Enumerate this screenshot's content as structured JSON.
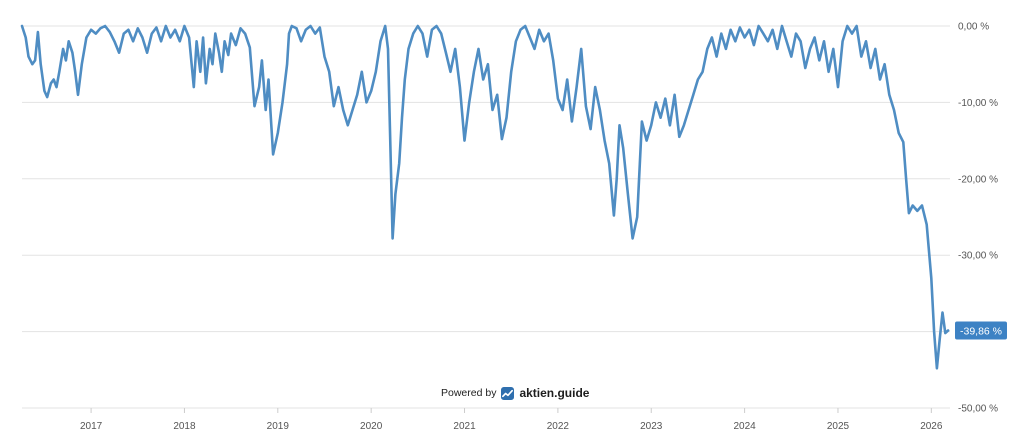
{
  "colors": {
    "series": "#4f8dc3",
    "badge": "#3d82c4",
    "grid": "#e3e3e3"
  },
  "credit": {
    "prefix": "Powered by",
    "brand": "aktien.guide",
    "icon": "aktien-guide-logo-icon"
  },
  "chart_data": {
    "type": "line",
    "title": "",
    "xlabel": "",
    "ylabel": "",
    "x_ticks": [
      "2017",
      "2018",
      "2019",
      "2020",
      "2021",
      "2022",
      "2023",
      "2024",
      "2025",
      "2026"
    ],
    "y_ticks": [
      "0,00 %",
      "-10,00 %",
      "-20,00 %",
      "-30,00 %",
      "-40,00 %",
      "-50,00 %"
    ],
    "y_tick_values": [
      0,
      -10,
      -20,
      -30,
      -40,
      -50
    ],
    "ylim": [
      -50,
      0
    ],
    "xlim": [
      2016.26,
      2026.2
    ],
    "grid": true,
    "last_value_label": "-39,86 %",
    "series": [
      {
        "values": [
          [
            2016.26,
            0
          ],
          [
            2016.3,
            -1.5
          ],
          [
            2016.33,
            -4
          ],
          [
            2016.37,
            -5
          ],
          [
            2016.4,
            -4.5
          ],
          [
            2016.43,
            -0.8
          ],
          [
            2016.46,
            -5
          ],
          [
            2016.5,
            -8.5
          ],
          [
            2016.53,
            -9.3
          ],
          [
            2016.57,
            -7.5
          ],
          [
            2016.6,
            -7
          ],
          [
            2016.63,
            -8
          ],
          [
            2016.66,
            -6
          ],
          [
            2016.7,
            -3
          ],
          [
            2016.73,
            -4.5
          ],
          [
            2016.76,
            -2
          ],
          [
            2016.8,
            -3.5
          ],
          [
            2016.83,
            -6
          ],
          [
            2016.86,
            -9
          ],
          [
            2016.9,
            -5
          ],
          [
            2016.95,
            -1.5
          ],
          [
            2017.0,
            -0.5
          ],
          [
            2017.05,
            -1
          ],
          [
            2017.1,
            -0.3
          ],
          [
            2017.15,
            0
          ],
          [
            2017.2,
            -0.8
          ],
          [
            2017.25,
            -2
          ],
          [
            2017.3,
            -3.5
          ],
          [
            2017.35,
            -1
          ],
          [
            2017.4,
            -0.5
          ],
          [
            2017.45,
            -2
          ],
          [
            2017.5,
            -0.3
          ],
          [
            2017.55,
            -1.5
          ],
          [
            2017.6,
            -3.5
          ],
          [
            2017.65,
            -1
          ],
          [
            2017.7,
            -0.2
          ],
          [
            2017.75,
            -2
          ],
          [
            2017.8,
            0
          ],
          [
            2017.85,
            -1.5
          ],
          [
            2017.9,
            -0.5
          ],
          [
            2017.95,
            -2
          ],
          [
            2018.0,
            0
          ],
          [
            2018.05,
            -1.5
          ],
          [
            2018.1,
            -8
          ],
          [
            2018.13,
            -2
          ],
          [
            2018.17,
            -6
          ],
          [
            2018.2,
            -1.5
          ],
          [
            2018.23,
            -7.5
          ],
          [
            2018.27,
            -3
          ],
          [
            2018.3,
            -5
          ],
          [
            2018.33,
            -1
          ],
          [
            2018.37,
            -3.5
          ],
          [
            2018.4,
            -6
          ],
          [
            2018.43,
            -2
          ],
          [
            2018.47,
            -3.8
          ],
          [
            2018.5,
            -1
          ],
          [
            2018.55,
            -2.5
          ],
          [
            2018.6,
            -0.3
          ],
          [
            2018.65,
            -1
          ],
          [
            2018.7,
            -2.8
          ],
          [
            2018.75,
            -10.5
          ],
          [
            2018.8,
            -8
          ],
          [
            2018.83,
            -4.5
          ],
          [
            2018.87,
            -11
          ],
          [
            2018.9,
            -7
          ],
          [
            2018.95,
            -16.8
          ],
          [
            2019.0,
            -14
          ],
          [
            2019.05,
            -10
          ],
          [
            2019.1,
            -5
          ],
          [
            2019.12,
            -1
          ],
          [
            2019.15,
            0
          ],
          [
            2019.2,
            -0.3
          ],
          [
            2019.25,
            -2
          ],
          [
            2019.3,
            -0.5
          ],
          [
            2019.35,
            0
          ],
          [
            2019.4,
            -1
          ],
          [
            2019.45,
            -0.2
          ],
          [
            2019.5,
            -4
          ],
          [
            2019.55,
            -6
          ],
          [
            2019.6,
            -10.5
          ],
          [
            2019.65,
            -8
          ],
          [
            2019.7,
            -11
          ],
          [
            2019.75,
            -13
          ],
          [
            2019.8,
            -11
          ],
          [
            2019.85,
            -9
          ],
          [
            2019.9,
            -6
          ],
          [
            2019.95,
            -10
          ],
          [
            2020.0,
            -8.5
          ],
          [
            2020.05,
            -6
          ],
          [
            2020.1,
            -2
          ],
          [
            2020.15,
            0
          ],
          [
            2020.18,
            -3
          ],
          [
            2020.21,
            -18
          ],
          [
            2020.23,
            -27.8
          ],
          [
            2020.26,
            -22
          ],
          [
            2020.3,
            -18
          ],
          [
            2020.33,
            -12
          ],
          [
            2020.36,
            -7
          ],
          [
            2020.4,
            -3
          ],
          [
            2020.45,
            -1
          ],
          [
            2020.5,
            0
          ],
          [
            2020.55,
            -1
          ],
          [
            2020.6,
            -4
          ],
          [
            2020.65,
            -0.5
          ],
          [
            2020.7,
            0
          ],
          [
            2020.75,
            -1
          ],
          [
            2020.8,
            -3.5
          ],
          [
            2020.85,
            -6
          ],
          [
            2020.9,
            -3
          ],
          [
            2020.95,
            -8
          ],
          [
            2021.0,
            -15
          ],
          [
            2021.05,
            -10
          ],
          [
            2021.1,
            -6
          ],
          [
            2021.15,
            -3
          ],
          [
            2021.2,
            -7
          ],
          [
            2021.25,
            -5
          ],
          [
            2021.3,
            -11
          ],
          [
            2021.35,
            -9
          ],
          [
            2021.4,
            -14.8
          ],
          [
            2021.45,
            -12
          ],
          [
            2021.5,
            -6
          ],
          [
            2021.55,
            -2
          ],
          [
            2021.6,
            -0.5
          ],
          [
            2021.65,
            0
          ],
          [
            2021.7,
            -1.5
          ],
          [
            2021.75,
            -3
          ],
          [
            2021.8,
            -0.5
          ],
          [
            2021.85,
            -2
          ],
          [
            2021.9,
            -1
          ],
          [
            2021.95,
            -4.5
          ],
          [
            2022.0,
            -9.5
          ],
          [
            2022.05,
            -11
          ],
          [
            2022.1,
            -7
          ],
          [
            2022.15,
            -12.5
          ],
          [
            2022.2,
            -8
          ],
          [
            2022.25,
            -3
          ],
          [
            2022.3,
            -10.5
          ],
          [
            2022.35,
            -13.5
          ],
          [
            2022.4,
            -8
          ],
          [
            2022.45,
            -11
          ],
          [
            2022.5,
            -15
          ],
          [
            2022.55,
            -18
          ],
          [
            2022.6,
            -24.8
          ],
          [
            2022.63,
            -20
          ],
          [
            2022.66,
            -13
          ],
          [
            2022.7,
            -16
          ],
          [
            2022.75,
            -22
          ],
          [
            2022.8,
            -27.8
          ],
          [
            2022.85,
            -25
          ],
          [
            2022.9,
            -12.5
          ],
          [
            2022.95,
            -15
          ],
          [
            2023.0,
            -13
          ],
          [
            2023.05,
            -10
          ],
          [
            2023.1,
            -12
          ],
          [
            2023.15,
            -9.5
          ],
          [
            2023.2,
            -13
          ],
          [
            2023.25,
            -9
          ],
          [
            2023.3,
            -14.5
          ],
          [
            2023.35,
            -13
          ],
          [
            2023.4,
            -11
          ],
          [
            2023.45,
            -9
          ],
          [
            2023.5,
            -7
          ],
          [
            2023.55,
            -6
          ],
          [
            2023.6,
            -3
          ],
          [
            2023.65,
            -1.5
          ],
          [
            2023.7,
            -4
          ],
          [
            2023.75,
            -1
          ],
          [
            2023.8,
            -3
          ],
          [
            2023.85,
            -0.5
          ],
          [
            2023.9,
            -2
          ],
          [
            2023.95,
            -0.2
          ],
          [
            2024.0,
            -1.5
          ],
          [
            2024.05,
            -0.5
          ],
          [
            2024.1,
            -2.5
          ],
          [
            2024.15,
            0
          ],
          [
            2024.2,
            -1
          ],
          [
            2024.25,
            -2
          ],
          [
            2024.3,
            -0.5
          ],
          [
            2024.35,
            -3
          ],
          [
            2024.4,
            0
          ],
          [
            2024.45,
            -2
          ],
          [
            2024.5,
            -4
          ],
          [
            2024.55,
            -1
          ],
          [
            2024.6,
            -2
          ],
          [
            2024.65,
            -5.5
          ],
          [
            2024.7,
            -3
          ],
          [
            2024.75,
            -1.5
          ],
          [
            2024.8,
            -4.5
          ],
          [
            2024.85,
            -2
          ],
          [
            2024.9,
            -6
          ],
          [
            2024.95,
            -3
          ],
          [
            2025.0,
            -8
          ],
          [
            2025.05,
            -2
          ],
          [
            2025.1,
            0
          ],
          [
            2025.15,
            -1
          ],
          [
            2025.2,
            0
          ],
          [
            2025.25,
            -4
          ],
          [
            2025.3,
            -2
          ],
          [
            2025.35,
            -5.5
          ],
          [
            2025.4,
            -3
          ],
          [
            2025.45,
            -7
          ],
          [
            2025.5,
            -5
          ],
          [
            2025.55,
            -9
          ],
          [
            2025.6,
            -11
          ],
          [
            2025.65,
            -14
          ],
          [
            2025.7,
            -15.2
          ],
          [
            2025.73,
            -20
          ],
          [
            2025.76,
            -24.5
          ],
          [
            2025.8,
            -23.5
          ],
          [
            2025.85,
            -24.2
          ],
          [
            2025.9,
            -23.5
          ],
          [
            2025.95,
            -26
          ],
          [
            2026.0,
            -33
          ],
          [
            2026.03,
            -40
          ],
          [
            2026.06,
            -44.8
          ],
          [
            2026.09,
            -41
          ],
          [
            2026.12,
            -37.5
          ],
          [
            2026.15,
            -40.2
          ],
          [
            2026.18,
            -39.86
          ]
        ]
      }
    ]
  }
}
